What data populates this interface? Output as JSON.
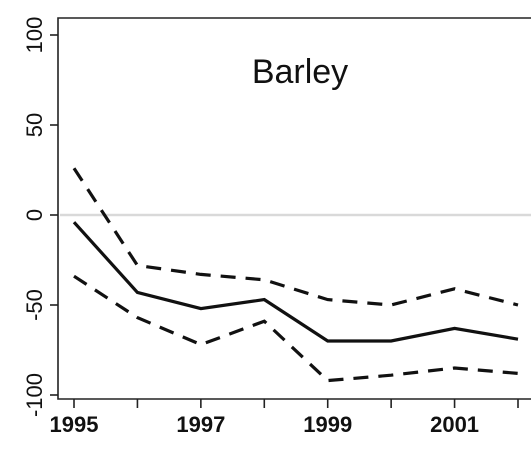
{
  "chart_data": {
    "type": "line",
    "title": "Barley",
    "xlabel": "",
    "ylabel": "",
    "x": [
      1995,
      1996,
      1997,
      1998,
      1999,
      2000,
      2001,
      2002
    ],
    "x_ticks": [
      1995,
      1997,
      1999,
      2001
    ],
    "x_tick_labels": [
      "1995",
      "1997",
      "1999",
      "2001"
    ],
    "xlim": [
      1995,
      2002
    ],
    "y_ticks": [
      -100,
      -50,
      0,
      50,
      100
    ],
    "y_tick_labels": [
      "-100",
      "-50",
      "0",
      "50",
      "100"
    ],
    "ylim": [
      -100,
      100
    ],
    "reference_line": 0,
    "grid": false,
    "legend": "none",
    "series": [
      {
        "style": "dashed",
        "values": [
          26,
          -28,
          -33,
          -36,
          -47,
          -50,
          -41,
          -50
        ]
      },
      {
        "style": "solid",
        "values": [
          -4,
          -43,
          -52,
          -47,
          -70,
          -70,
          -63,
          -69
        ]
      },
      {
        "style": "dashed",
        "values": [
          -34,
          -57,
          -72,
          -59,
          -92,
          -89,
          -85,
          -88
        ]
      }
    ],
    "colors": {
      "lines": "#111111",
      "reference": "#d9d9d9",
      "axes": "#222222"
    }
  }
}
